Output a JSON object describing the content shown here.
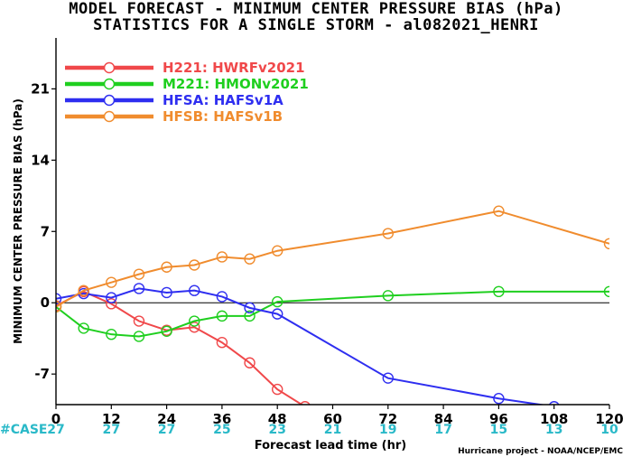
{
  "title_line1": "MODEL FORECAST - MINIMUM CENTER PRESSURE BIAS (hPa)",
  "title_line2": "STATISTICS FOR A SINGLE STORM - al082021_HENRI",
  "case_label": "#CASE",
  "credit": "Hurricane project - NOAA/NCEP/EMC",
  "chart_data": {
    "type": "line",
    "xlabel": "Forecast lead time (hr)",
    "ylabel": "MINIMUM CENTER PRESSURE BIAS (hPa)",
    "xlim": [
      0,
      120
    ],
    "ylim": [
      -10,
      26
    ],
    "x_ticks": [
      0,
      12,
      24,
      36,
      48,
      60,
      72,
      84,
      96,
      108,
      120
    ],
    "y_ticks": [
      -7,
      0,
      7,
      14,
      21
    ],
    "zero_line": true,
    "legend_position": "top-left",
    "case_counts": [
      27,
      27,
      27,
      25,
      23,
      21,
      19,
      17,
      15,
      13,
      10
    ],
    "series": [
      {
        "name": "H221: HWRFv2021",
        "color": "#f0484a",
        "x": [
          0,
          6,
          12,
          18,
          24,
          30,
          36,
          42,
          48,
          54
        ],
        "y": [
          -0.3,
          1.1,
          -0.1,
          -1.8,
          -2.7,
          -2.4,
          -3.9,
          -5.9,
          -8.5,
          -10.2
        ]
      },
      {
        "name": "M221: HMONv2021",
        "color": "#1fcf1f",
        "x": [
          0,
          6,
          12,
          18,
          24,
          30,
          36,
          42,
          48,
          72,
          96,
          120
        ],
        "y": [
          -0.4,
          -2.5,
          -3.1,
          -3.3,
          -2.8,
          -1.8,
          -1.3,
          -1.3,
          0.1,
          0.7,
          1.1,
          1.1
        ]
      },
      {
        "name": "HFSA: HAFSv1A",
        "color": "#2e2ef0",
        "x": [
          0,
          6,
          12,
          18,
          24,
          30,
          36,
          42,
          48,
          72,
          96,
          108
        ],
        "y": [
          0.4,
          0.9,
          0.5,
          1.4,
          1.0,
          1.2,
          0.6,
          -0.5,
          -1.1,
          -7.4,
          -9.4,
          -10.2
        ]
      },
      {
        "name": "HFSB: HAFSv1B",
        "color": "#f08c2e",
        "x": [
          0,
          6,
          12,
          18,
          24,
          30,
          36,
          42,
          48,
          72,
          96,
          120
        ],
        "y": [
          -0.4,
          1.2,
          2.0,
          2.8,
          3.5,
          3.7,
          4.5,
          4.3,
          5.1,
          6.8,
          9.0,
          5.8
        ]
      }
    ]
  }
}
